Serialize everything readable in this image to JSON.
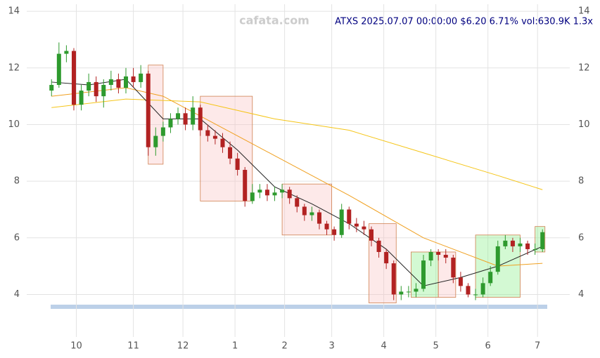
{
  "chart_data": {
    "type": "candlestick",
    "title": "ATXS 2025.07.07 00:00:00 $6.20 6.71% vol:630.9K 1.3x",
    "watermark": "cafata.com",
    "x": [
      0,
      3,
      6,
      9,
      12,
      15,
      18,
      21,
      24,
      27,
      30,
      33,
      36,
      39,
      42,
      45,
      48,
      51,
      54,
      57,
      60,
      63,
      66,
      69,
      72,
      75,
      78,
      81,
      84,
      87,
      90,
      93,
      96,
      99,
      102,
      105,
      108,
      111,
      114,
      117,
      120,
      123,
      126,
      129,
      132,
      135,
      138,
      141,
      144,
      147,
      150,
      153,
      156,
      159,
      162,
      165,
      168,
      171,
      174,
      177,
      180,
      183,
      186,
      189,
      192,
      195,
      198
    ],
    "open": [
      11.2,
      11.4,
      12.5,
      12.6,
      10.7,
      11.2,
      11.5,
      11.0,
      11.4,
      11.6,
      11.3,
      11.7,
      11.5,
      11.8,
      9.2,
      9.6,
      9.9,
      10.2,
      10.4,
      10.0,
      10.6,
      9.8,
      9.6,
      9.5,
      9.2,
      8.8,
      8.4,
      7.3,
      7.6,
      7.7,
      7.5,
      7.6,
      7.7,
      7.4,
      7.1,
      6.8,
      6.9,
      6.5,
      6.3,
      6.1,
      7.0,
      6.5,
      6.4,
      6.3,
      5.9,
      5.5,
      5.1,
      4.0,
      4.1,
      4.1,
      4.2,
      5.2,
      5.5,
      5.4,
      5.3,
      4.6,
      4.3,
      4.0,
      4.0,
      4.4,
      4.8,
      5.7,
      5.9,
      5.7,
      5.8,
      5.6,
      5.6
    ],
    "high": [
      11.6,
      12.9,
      12.8,
      12.7,
      11.4,
      11.8,
      11.7,
      11.6,
      11.9,
      11.8,
      12.0,
      12.0,
      12.1,
      11.9,
      9.9,
      10.1,
      10.4,
      10.6,
      10.6,
      11.0,
      10.7,
      10.0,
      9.8,
      9.7,
      9.4,
      9.0,
      8.5,
      7.9,
      7.9,
      7.9,
      7.8,
      7.9,
      7.8,
      7.5,
      7.2,
      7.1,
      7.0,
      6.6,
      6.4,
      7.2,
      7.1,
      6.7,
      6.6,
      6.4,
      6.0,
      5.6,
      5.2,
      4.3,
      4.3,
      4.4,
      5.4,
      5.6,
      5.6,
      5.6,
      5.4,
      4.8,
      4.4,
      4.2,
      4.6,
      5.0,
      5.9,
      6.1,
      6.0,
      6.0,
      5.9,
      5.8,
      6.3
    ],
    "low": [
      11.0,
      11.3,
      12.2,
      10.5,
      10.5,
      11.0,
      10.8,
      10.6,
      11.2,
      11.1,
      11.1,
      11.3,
      11.3,
      8.9,
      8.9,
      9.4,
      9.7,
      10.0,
      9.8,
      9.8,
      9.6,
      9.4,
      9.3,
      9.0,
      8.6,
      8.2,
      7.1,
      7.2,
      7.4,
      7.3,
      7.3,
      7.4,
      7.2,
      6.9,
      6.6,
      6.6,
      6.3,
      6.1,
      5.9,
      6.0,
      6.3,
      6.2,
      6.1,
      5.7,
      5.3,
      4.9,
      3.8,
      3.8,
      3.9,
      3.9,
      4.1,
      5.0,
      5.2,
      5.1,
      4.4,
      4.1,
      3.9,
      3.8,
      3.9,
      4.3,
      4.7,
      5.6,
      5.5,
      5.5,
      5.4,
      5.4,
      5.5
    ],
    "close": [
      11.4,
      12.5,
      12.6,
      10.7,
      11.2,
      11.5,
      11.0,
      11.4,
      11.6,
      11.3,
      11.7,
      11.5,
      11.8,
      9.2,
      9.6,
      9.9,
      10.2,
      10.4,
      10.0,
      10.6,
      9.8,
      9.6,
      9.5,
      9.2,
      8.8,
      8.4,
      7.3,
      7.6,
      7.7,
      7.5,
      7.6,
      7.7,
      7.4,
      7.1,
      6.8,
      6.9,
      6.5,
      6.3,
      6.1,
      7.0,
      6.5,
      6.4,
      6.3,
      5.9,
      5.5,
      5.1,
      4.0,
      4.1,
      4.1,
      4.2,
      5.2,
      5.5,
      5.4,
      5.3,
      4.6,
      4.3,
      4.0,
      4.0,
      4.4,
      4.8,
      5.7,
      5.9,
      5.7,
      5.8,
      5.6,
      5.6,
      6.2
    ],
    "up_color": "#2e9a2e",
    "down_color": "#b22222",
    "lines": [
      {
        "color": "#f5c518",
        "x": [
          0,
          30,
          60,
          90,
          120,
          150,
          180,
          198
        ],
        "values": [
          10.6,
          10.9,
          10.8,
          10.2,
          9.8,
          9.0,
          8.2,
          7.7
        ]
      },
      {
        "color": "#f0a020",
        "x": [
          0,
          30,
          45,
          60,
          90,
          120,
          150,
          180,
          198
        ],
        "values": [
          11.0,
          11.3,
          11.0,
          10.3,
          8.9,
          7.5,
          6.0,
          5.0,
          5.1
        ]
      },
      {
        "color": "#222222",
        "x": [
          0,
          15,
          30,
          45,
          60,
          75,
          90,
          105,
          120,
          135,
          150,
          165,
          180,
          198
        ],
        "values": [
          11.5,
          11.4,
          11.6,
          10.2,
          10.2,
          9.1,
          7.8,
          7.2,
          6.5,
          5.6,
          4.3,
          4.6,
          5.0,
          5.7
        ]
      }
    ],
    "zones": [
      {
        "color": "#f8c0c0",
        "x": [
          39,
          45
        ],
        "y": [
          8.6,
          12.1
        ]
      },
      {
        "color": "#f8c0c0",
        "x": [
          60,
          81
        ],
        "y": [
          7.3,
          11.0
        ]
      },
      {
        "color": "#f8c0c0",
        "x": [
          93,
          113
        ],
        "y": [
          6.1,
          7.9
        ]
      },
      {
        "color": "#f8c0c0",
        "x": [
          128,
          139
        ],
        "y": [
          3.7,
          6.5
        ]
      },
      {
        "color": "#80ee80",
        "x": [
          145,
          156
        ],
        "y": [
          3.9,
          5.5
        ]
      },
      {
        "color": "#f8c0c0",
        "x": [
          156,
          163
        ],
        "y": [
          3.9,
          5.5
        ]
      },
      {
        "color": "#80ee80",
        "x": [
          171,
          189
        ],
        "y": [
          3.9,
          6.1
        ]
      },
      {
        "color": "#80ee80",
        "x": [
          195,
          199
        ],
        "y": [
          5.5,
          6.4
        ]
      }
    ],
    "xlim": [
      -10,
      209
    ],
    "xticks": [
      {
        "value": 10,
        "label": "10"
      },
      {
        "value": 33,
        "label": "11"
      },
      {
        "value": 53,
        "label": "12"
      },
      {
        "value": 74,
        "label": "1"
      },
      {
        "value": 94,
        "label": "2"
      },
      {
        "value": 113,
        "label": "3"
      },
      {
        "value": 134,
        "label": "4"
      },
      {
        "value": 155,
        "label": "5"
      },
      {
        "value": 176,
        "label": "6"
      },
      {
        "value": 196,
        "label": "7"
      }
    ],
    "ylim": [
      2.5,
      14.25
    ],
    "yticks": [
      4,
      6,
      8,
      10,
      12,
      14
    ],
    "grid": true
  }
}
